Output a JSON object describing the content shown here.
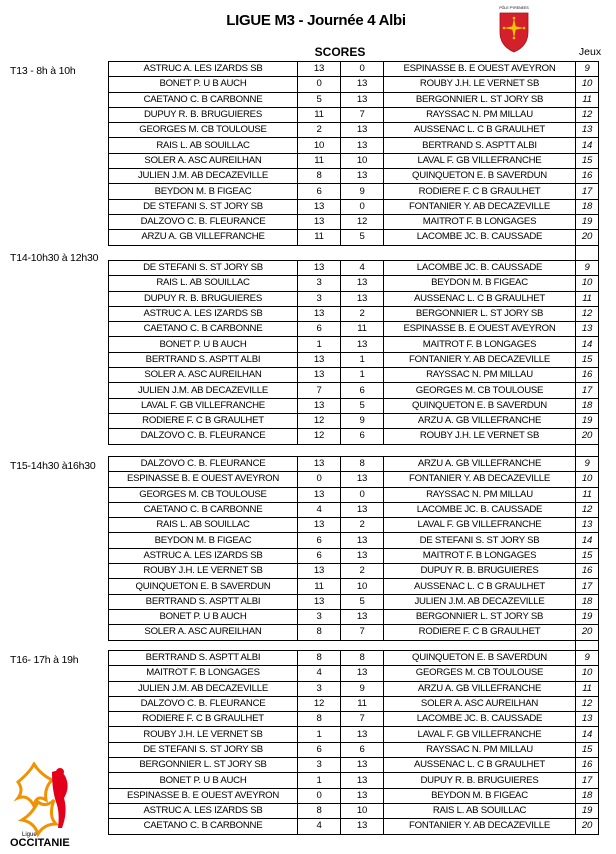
{
  "header": {
    "title": "LIGUE M3 - Journée 4  Albi",
    "scores_label": "SCORES",
    "jeux_label": "Jeux",
    "shield_logo_text": "PÔLE PYRENEES",
    "occitanie_logo_text": [
      "Ligue",
      "OCCITANIE"
    ]
  },
  "colors": {
    "shield_red": "#d4202a",
    "cross_yellow": "#f3c400",
    "logo_red": "#e3001b",
    "logo_orange": "#f39200"
  },
  "sections": [
    {
      "label": "T13 -  8h à 10h",
      "rows": [
        [
          "ASTRUC A.  LES IZARDS SB",
          "13",
          "0",
          "ESPINASSE B. E OUEST AVEYRON",
          "9"
        ],
        [
          "BONET P.  U B AUCH",
          "0",
          "13",
          "ROUBY J.H.  LE VERNET SB",
          "10"
        ],
        [
          "CAETANO C.  B CARBONNE",
          "5",
          "13",
          "BERGONNIER L.  ST JORY SB",
          "11"
        ],
        [
          "DUPUY  R.   B. BRUGUIERES",
          "11",
          "7",
          "RAYSSAC N.   PM MILLAU",
          "12"
        ],
        [
          "GEORGES M.  CB TOULOUSE",
          "2",
          "13",
          "AUSSENAC L.  C B GRAULHET",
          "13"
        ],
        [
          "RAIS L.  AB SOUILLAC",
          "10",
          "13",
          "BERTRAND S.  ASPTT ALBI",
          "14"
        ],
        [
          "SOLER A.  ASC AUREILHAN",
          "11",
          "10",
          "LAVAL F.  GB VILLEFRANCHE",
          "15"
        ],
        [
          "JULIEN J.M.  AB DECAZEVILLE",
          "8",
          "13",
          "QUINQUETON E.  B  SAVERDUN",
          "16"
        ],
        [
          "BEYDON M.  B FIGEAC",
          "6",
          "9",
          "RODIERE F.  C B GRAULHET",
          "17"
        ],
        [
          "DE STEFANI S. ST JORY SB",
          "13",
          "0",
          "FONTANIER Y. AB DECAZEVILLE",
          "18"
        ],
        [
          "DALZOVO C.  B. FLEURANCE",
          "13",
          "12",
          "MAITROT F.  B LONGAGES",
          "19"
        ],
        [
          "ARZU A. GB VILLEFRANCHE",
          "11",
          "5",
          "LACOMBE JC.  B. CAUSSADE",
          "20"
        ]
      ]
    },
    {
      "label": "T14-10h30 à 12h30",
      "rows": [
        [
          "DE STEFANI S. ST JORY SB",
          "13",
          "4",
          "LACOMBE JC.  B. CAUSSADE",
          "9"
        ],
        [
          "RAIS L.  AB SOUILLAC",
          "3",
          "13",
          "BEYDON M.  B FIGEAC",
          "10"
        ],
        [
          "DUPUY  R.   B. BRUGUIERES",
          "3",
          "13",
          "AUSSENAC L.  C B GRAULHET",
          "11"
        ],
        [
          "ASTRUC A.  LES IZARDS SB",
          "13",
          "2",
          "BERGONNIER L.  ST JORY SB",
          "12"
        ],
        [
          "CAETANO C.  B CARBONNE",
          "6",
          "11",
          "ESPINASSE B. E OUEST AVEYRON",
          "13"
        ],
        [
          "BONET P.  U B AUCH",
          "1",
          "13",
          "MAITROT F.  B LONGAGES",
          "14"
        ],
        [
          "BERTRAND S.  ASPTT ALBI",
          "13",
          "1",
          "FONTANIER Y. AB DECAZEVILLE",
          "15"
        ],
        [
          "SOLER A.  ASC AUREILHAN",
          "13",
          "1",
          "RAYSSAC N.   PM MILLAU",
          "16"
        ],
        [
          "JULIEN J.M.  AB DECAZEVILLE",
          "7",
          "6",
          "GEORGES M.  CB TOULOUSE",
          "17"
        ],
        [
          "LAVAL F.  GB VILLEFRANCHE",
          "13",
          "5",
          "QUINQUETON E.  B  SAVERDUN",
          "18"
        ],
        [
          "RODIERE F.  C B GRAULHET",
          "12",
          "9",
          "ARZU A. GB VILLEFRANCHE",
          "19"
        ],
        [
          "DALZOVO C.  B. FLEURANCE",
          "12",
          "6",
          "ROUBY J.H.  LE VERNET SB",
          "20"
        ]
      ]
    },
    {
      "label": "T15-14h30 à16h30",
      "rows": [
        [
          "DALZOVO C.  B. FLEURANCE",
          "13",
          "8",
          "ARZU A. GB VILLEFRANCHE",
          "9"
        ],
        [
          "ESPINASSE B. E OUEST AVEYRON",
          "0",
          "13",
          "FONTANIER Y. AB DECAZEVILLE",
          "10"
        ],
        [
          "GEORGES M.  CB TOULOUSE",
          "13",
          "0",
          "RAYSSAC N.   PM MILLAU",
          "11"
        ],
        [
          "CAETANO C.  B CARBONNE",
          "4",
          "13",
          "LACOMBE JC.  B. CAUSSADE",
          "12"
        ],
        [
          "RAIS L.  AB SOUILLAC",
          "13",
          "2",
          "LAVAL F.  GB VILLEFRANCHE",
          "13"
        ],
        [
          "BEYDON M.  B FIGEAC",
          "6",
          "13",
          "DE STEFANI S. ST JORY SB",
          "14"
        ],
        [
          "ASTRUC A.  LES IZARDS SB",
          "6",
          "13",
          "MAITROT F.  B LONGAGES",
          "15"
        ],
        [
          "ROUBY J.H.  LE VERNET SB",
          "13",
          "2",
          "DUPUY  R.   B. BRUGUIERES",
          "16"
        ],
        [
          "QUINQUETON E.  B  SAVERDUN",
          "11",
          "10",
          "AUSSENAC L.  C B GRAULHET",
          "17"
        ],
        [
          "BERTRAND S.  ASPTT ALBI",
          "13",
          "5",
          "JULIEN J.M.  AB DECAZEVILLE",
          "18"
        ],
        [
          "BONET P.  U B AUCH",
          "3",
          "13",
          "BERGONNIER L.  ST JORY SB",
          "19"
        ],
        [
          "SOLER A.  ASC AUREILHAN",
          "8",
          "7",
          "RODIERE F.  C B GRAULHET",
          "20"
        ]
      ]
    },
    {
      "label": "T16- 17h à 19h",
      "rows": [
        [
          "BERTRAND S.  ASPTT ALBI",
          "8",
          "8",
          "QUINQUETON E.  B  SAVERDUN",
          "9"
        ],
        [
          "MAITROT F.  B LONGAGES",
          "4",
          "13",
          "GEORGES M.  CB TOULOUSE",
          "10"
        ],
        [
          "JULIEN J.M.  AB DECAZEVILLE",
          "3",
          "9",
          "ARZU A. GB VILLEFRANCHE",
          "11"
        ],
        [
          "DALZOVO C.  B. FLEURANCE",
          "12",
          "11",
          "SOLER A.  ASC AUREILHAN",
          "12"
        ],
        [
          "RODIERE F.  C B GRAULHET",
          "8",
          "7",
          "LACOMBE JC.  B. CAUSSADE",
          "13"
        ],
        [
          "ROUBY J.H.  LE VERNET SB",
          "1",
          "13",
          "LAVAL F.  GB VILLEFRANCHE",
          "14"
        ],
        [
          "DE STEFANI S. ST JORY SB",
          "6",
          "6",
          "RAYSSAC N.   PM MILLAU",
          "15"
        ],
        [
          "BERGONNIER L.  ST JORY SB",
          "3",
          "13",
          "AUSSENAC L.  C B GRAULHET",
          "16"
        ],
        [
          "BONET P.  U B AUCH",
          "1",
          "13",
          "DUPUY  R.   B. BRUGUIERES",
          "17"
        ],
        [
          "ESPINASSE B. E OUEST AVEYRON",
          "0",
          "13",
          "BEYDON M.  B FIGEAC",
          "18"
        ],
        [
          "ASTRUC A.  LES IZARDS SB",
          "8",
          "10",
          "RAIS L.  AB SOUILLAC",
          "19"
        ],
        [
          "CAETANO C.  B CARBONNE",
          "4",
          "13",
          "FONTANIER Y. AB DECAZEVILLE",
          "20"
        ]
      ]
    }
  ]
}
